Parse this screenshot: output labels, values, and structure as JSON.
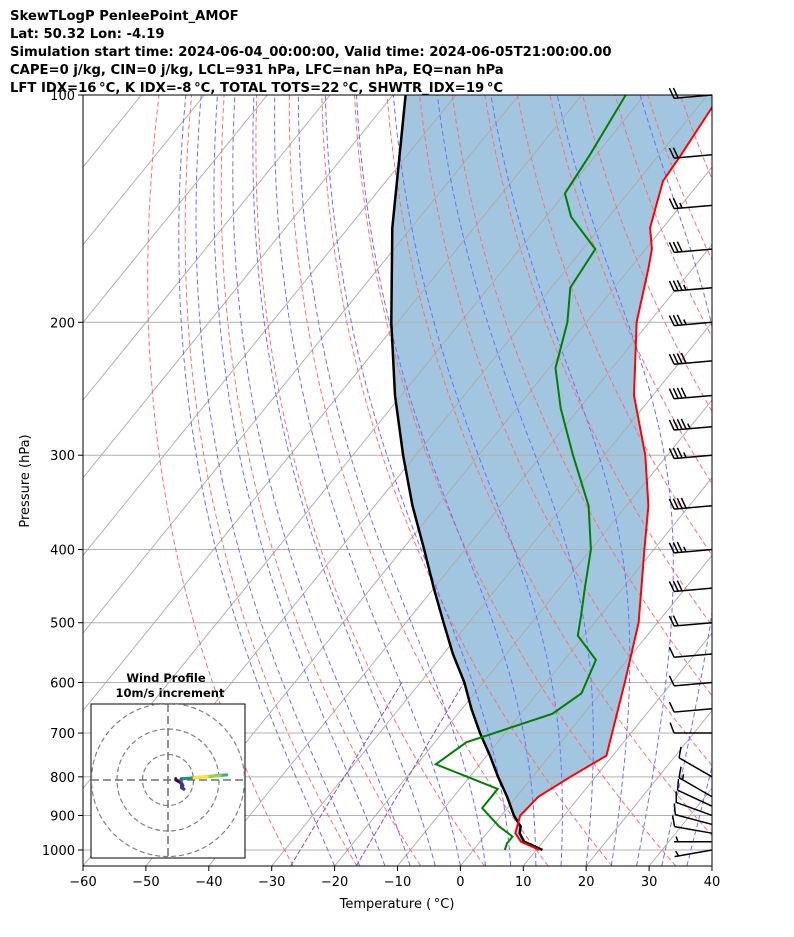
{
  "header": {
    "line1": "SkewTLogP PenleePoint_AMOF",
    "line2": "Lat: 50.32   Lon: -4.19",
    "line3": "Simulation start time: 2024-06-04_00:00:00, Valid time: 2024-06-05T21:00:00.00",
    "line4": "CAPE=0 j/kg, CIN=0 j/kg, LCL=931 hPa, LFC=nan hPa, EQ=nan hPa",
    "line5": "LFT IDX=16 °C, K IDX=-8 °C, TOTAL TOTS=22 °C, SHWTR_IDX=19 °C"
  },
  "colors": {
    "temperature": "#ff0000",
    "dewpoint": "#008000",
    "parcel": "#000000",
    "shade": "#a2c6df",
    "isotherm": "#aaaaaa",
    "dry_adiabat": "#ff6e6e",
    "moist_adiabat": "#6e6eff",
    "mixing_ratio": "#9b4bb8"
  },
  "chart_data": {
    "type": "skewt",
    "title": "SkewTLogP PenleePoint_AMOF",
    "xlabel": "Temperature ( °C)",
    "ylabel": "Pressure (hPa)",
    "xlim": [
      -60,
      40
    ],
    "ylim": [
      1050,
      100
    ],
    "x_ticks": [
      -60,
      -50,
      -40,
      -30,
      -20,
      -10,
      0,
      10,
      20,
      30,
      40
    ],
    "y_ticks": [
      1000,
      900,
      800,
      700,
      600,
      500,
      400,
      300,
      200,
      100
    ],
    "temperature_profile": [
      [
        1000,
        10.5
      ],
      [
        975,
        6.5
      ],
      [
        950,
        4.5
      ],
      [
        900,
        3.0
      ],
      [
        850,
        3.5
      ],
      [
        800,
        6.0
      ],
      [
        750,
        9.0
      ],
      [
        700,
        7.0
      ],
      [
        600,
        2.5
      ],
      [
        500,
        -3.0
      ],
      [
        450,
        -7.0
      ],
      [
        400,
        -11.5
      ],
      [
        350,
        -16.5
      ],
      [
        300,
        -23.5
      ],
      [
        250,
        -33.0
      ],
      [
        200,
        -42.0
      ],
      [
        170,
        -47.0
      ],
      [
        160,
        -49.0
      ],
      [
        150,
        -52.0
      ],
      [
        130,
        -56.0
      ],
      [
        120,
        -56.5
      ],
      [
        100,
        -58.0
      ]
    ],
    "dewpoint_profile": [
      [
        1000,
        5.0
      ],
      [
        980,
        4.5
      ],
      [
        960,
        4.5
      ],
      [
        930,
        1.0
      ],
      [
        880,
        -4.0
      ],
      [
        830,
        -4.0
      ],
      [
        770,
        -17.0
      ],
      [
        720,
        -15.0
      ],
      [
        660,
        -5.0
      ],
      [
        620,
        -3.0
      ],
      [
        560,
        -5.0
      ],
      [
        520,
        -11.0
      ],
      [
        490,
        -13.0
      ],
      [
        450,
        -16.0
      ],
      [
        400,
        -20.0
      ],
      [
        350,
        -26.0
      ],
      [
        300,
        -35.0
      ],
      [
        260,
        -43.0
      ],
      [
        230,
        -49.0
      ],
      [
        200,
        -53.0
      ],
      [
        180,
        -57.0
      ],
      [
        160,
        -58.0
      ],
      [
        145,
        -66.0
      ],
      [
        135,
        -70.0
      ],
      [
        120,
        -71.0
      ],
      [
        100,
        -73.0
      ]
    ],
    "parcel_profile": [
      [
        1000,
        11.0
      ],
      [
        975,
        7.0
      ],
      [
        950,
        5.2
      ],
      [
        931,
        4.5
      ],
      [
        900,
        2.0
      ],
      [
        850,
        -1.5
      ],
      [
        800,
        -5.5
      ],
      [
        750,
        -9.5
      ],
      [
        700,
        -14.0
      ],
      [
        650,
        -18.5
      ],
      [
        600,
        -23.0
      ],
      [
        550,
        -28.5
      ],
      [
        500,
        -34.0
      ],
      [
        450,
        -40.0
      ],
      [
        400,
        -46.5
      ],
      [
        350,
        -54.0
      ],
      [
        300,
        -62.0
      ],
      [
        250,
        -71.0
      ],
      [
        200,
        -81.0
      ],
      [
        150,
        -93.0
      ],
      [
        100,
        -108.0
      ]
    ],
    "wind_barbs": [
      [
        1000,
        6,
        260
      ],
      [
        975,
        6,
        270
      ],
      [
        950,
        9,
        280
      ],
      [
        925,
        11,
        285
      ],
      [
        900,
        12,
        290
      ],
      [
        875,
        12,
        295
      ],
      [
        850,
        14,
        300
      ],
      [
        800,
        12,
        300
      ],
      [
        700,
        10,
        270
      ],
      [
        650,
        10,
        265
      ],
      [
        600,
        11,
        265
      ],
      [
        550,
        12,
        265
      ],
      [
        500,
        20,
        265
      ],
      [
        450,
        30,
        265
      ],
      [
        400,
        35,
        265
      ],
      [
        350,
        40,
        265
      ],
      [
        300,
        35,
        265
      ],
      [
        275,
        45,
        265
      ],
      [
        250,
        40,
        265
      ],
      [
        225,
        40,
        265
      ],
      [
        200,
        35,
        265
      ],
      [
        180,
        35,
        265
      ],
      [
        160,
        30,
        265
      ],
      [
        140,
        25,
        265
      ],
      [
        120,
        20,
        265
      ],
      [
        100,
        20,
        265
      ]
    ],
    "hodograph": {
      "title": "Wind Profile",
      "subtitle": "10m/s increment",
      "rings_ms": [
        10,
        20,
        30
      ]
    }
  }
}
